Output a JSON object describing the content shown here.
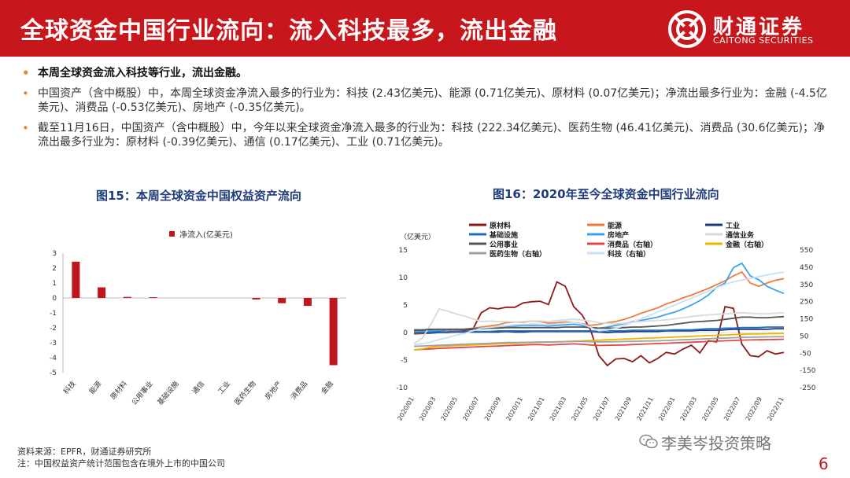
{
  "header": {
    "title": "全球资金中国行业流向：流入科技最多，流出金融",
    "brand_cn": "财通证券",
    "brand_en": "CAITONG SECURITIES",
    "color": "#c8161d"
  },
  "bullets": [
    "本周全球资金流入科技等行业，流出金融。",
    "中国资产（含中概股）中，本周全球资金净流入最多的行业为：科技 (2.43亿美元)、能源 (0.71亿美元)、原材料 (0.07亿美元)；净流出最多行业为：金融 (-4.5亿美元)、消费品 (-0.53亿美元)、房地产 (-0.35亿美元)。",
    "截至11月16日，中国资产（含中概股）中，今年以来全球资金净流入最多的行业为：科技 (222.34亿美元)、医药生物 (46.41亿美元)、消费品 (30.6亿美元)；净流出最多行业为：原材料 (-0.39亿美元)、通信 (0.17亿美元)、工业 (0.71亿美元)。"
  ],
  "figures": {
    "fig15_title": "图15：本周全球资金中国权益资产流向",
    "fig16_title": "图16：2020年至今全球资金中国行业流向"
  },
  "chart_data": [
    {
      "type": "bar",
      "legend": "净流入(亿美元)",
      "categories": [
        "科技",
        "能源",
        "原材料",
        "公用事业",
        "基础设施",
        "通信",
        "工业",
        "医药生物",
        "房地产",
        "消费品",
        "金融"
      ],
      "values": [
        2.43,
        0.71,
        0.07,
        0.05,
        0.0,
        0.0,
        0.0,
        -0.1,
        -0.35,
        -0.53,
        -4.5
      ],
      "ylim": [
        -5,
        3
      ],
      "yticks": [
        3,
        2,
        1,
        0,
        -1,
        -2,
        -3,
        -4,
        -5
      ],
      "bar_color": "#c0161d"
    },
    {
      "type": "line",
      "ylabel": "（亿美元）",
      "left_ylim": [
        -10,
        15
      ],
      "left_yticks": [
        15,
        10,
        5,
        0,
        -5,
        -10
      ],
      "right_ylim": [
        -250,
        550
      ],
      "right_yticks": [
        550,
        450,
        350,
        250,
        150,
        50,
        -50,
        -150,
        -250
      ],
      "x_ticks": [
        "2020/01",
        "2020/03",
        "2020/05",
        "2020/07",
        "2020/09",
        "2020/11",
        "2021/01",
        "2021/03",
        "2021/05",
        "2021/07",
        "2021/09",
        "2021/11",
        "2022/01",
        "2022/03",
        "2022/05",
        "2022/07",
        "2022/09",
        "2022/11"
      ],
      "series": [
        {
          "name": "原材料",
          "axis": "left",
          "color": "#8b1a1a",
          "values": [
            0.3,
            0.3,
            0.4,
            0.3,
            0.5,
            0.4,
            0.4,
            0.6,
            3.6,
            4.5,
            4.3,
            4.6,
            4.6,
            5.4,
            5.6,
            5.7,
            5.1,
            9.2,
            8.4,
            4.7,
            3.2,
            0.5,
            -4.2,
            -6.0,
            -4.8,
            -4.7,
            -5.3,
            -4.2,
            -5.5,
            -4.7,
            -3.6,
            -3.9,
            -3.0,
            -2.3,
            -3.7,
            -1.5,
            -1.7,
            4.7,
            4.4,
            -2.1,
            -4.2,
            -4.4,
            -3.3,
            -3.9,
            -3.6
          ]
        },
        {
          "name": "能源",
          "axis": "left",
          "color": "#f07b3f",
          "values": [
            -0.3,
            -0.2,
            -0.1,
            0.1,
            0.2,
            0.4,
            0.6,
            0.8,
            1.0,
            1.2,
            1.4,
            1.8,
            1.9,
            1.9,
            2.1,
            2.0,
            1.7,
            1.8,
            1.9,
            1.8,
            1.6,
            1.3,
            1.5,
            1.8,
            2.0,
            2.4,
            2.9,
            3.5,
            4.0,
            4.5,
            5.2,
            5.7,
            6.3,
            6.8,
            7.4,
            8.0,
            8.7,
            9.4,
            10.3,
            11.0,
            9.0,
            8.4,
            9.0,
            9.5,
            9.8
          ]
        },
        {
          "name": "工业",
          "axis": "left",
          "color": "#1f3b7a",
          "values": [
            -0.1,
            -0.1,
            -0.1,
            0.0,
            0.0,
            0.1,
            0.1,
            0.1,
            0.1,
            0.1,
            0.1,
            0.2,
            0.1,
            0.1,
            0.2,
            0.2,
            0.2,
            0.2,
            0.2,
            0.2,
            0.2,
            0.2,
            0.1,
            0.0,
            0.1,
            0.1,
            0.2,
            0.2,
            0.2,
            0.2,
            0.3,
            0.3,
            0.3,
            0.3,
            0.4,
            0.4,
            0.4,
            0.5,
            0.6,
            0.6,
            0.6,
            0.6,
            0.6,
            0.7,
            0.7
          ]
        },
        {
          "name": "基础设施",
          "axis": "left",
          "color": "#1f6fbf",
          "values": [
            0.0,
            0.1,
            0.1,
            0.1,
            0.1,
            0.2,
            0.2,
            0.2,
            0.2,
            0.2,
            0.3,
            0.3,
            0.3,
            0.3,
            0.3,
            0.3,
            0.3,
            0.3,
            0.3,
            0.3,
            0.3,
            0.3,
            0.2,
            0.3,
            0.3,
            0.3,
            0.4,
            0.4,
            0.4,
            0.4,
            0.4,
            0.5,
            0.5,
            0.5,
            0.6,
            0.7,
            0.7,
            0.8,
            0.8,
            0.9,
            0.9,
            0.9,
            1.0,
            1.0,
            1.0
          ]
        },
        {
          "name": "房地产",
          "axis": "left",
          "color": "#3da3e8",
          "values": [
            0.2,
            0.2,
            0.3,
            0.4,
            0.5,
            0.6,
            0.6,
            0.7,
            0.8,
            0.9,
            1.0,
            1.1,
            1.2,
            1.3,
            1.3,
            1.3,
            1.2,
            1.3,
            1.4,
            1.5,
            1.3,
            0.9,
            0.8,
            1.0,
            1.3,
            1.6,
            2.0,
            2.2,
            2.5,
            2.8,
            3.3,
            3.7,
            4.3,
            5.0,
            5.8,
            6.8,
            8.2,
            9.0,
            11.8,
            12.6,
            10.3,
            9.6,
            8.4,
            7.7,
            7.1
          ]
        },
        {
          "name": "通信业务",
          "axis": "left",
          "color": "#d9d9d9",
          "values": [
            -2.0,
            -1.0,
            1.5,
            4.3,
            3.9,
            3.4,
            3.0,
            2.5,
            2.0,
            2.1,
            2.0,
            2.0,
            1.9,
            2.0,
            2.1,
            2.1,
            2.0,
            2.2,
            2.3,
            2.4,
            2.3,
            2.1,
            1.8,
            1.7,
            1.6,
            1.7,
            1.9,
            2.0,
            2.1,
            2.2,
            2.3,
            2.5,
            2.7,
            2.9,
            3.1,
            3.2,
            3.3,
            3.4,
            3.5,
            3.6,
            3.5,
            3.4,
            3.4,
            3.5,
            3.6
          ]
        },
        {
          "name": "公用事业",
          "axis": "left",
          "color": "#555555",
          "values": [
            0.5,
            0.5,
            0.6,
            0.6,
            0.6,
            0.6,
            0.6,
            0.7,
            0.7,
            0.8,
            0.8,
            0.9,
            0.9,
            0.9,
            0.9,
            0.9,
            0.9,
            0.9,
            1.0,
            1.0,
            1.0,
            0.9,
            0.8,
            0.8,
            0.8,
            0.9,
            1.0,
            1.0,
            1.1,
            1.2,
            1.3,
            1.5,
            1.7,
            1.9,
            2.0,
            2.1,
            2.2,
            2.4,
            2.6,
            2.8,
            2.8,
            2.7,
            2.7,
            2.8,
            2.9
          ]
        },
        {
          "name": "消费品（右轴）",
          "axis": "right",
          "color": "#e04848",
          "values": [
            -30,
            -28,
            -25,
            -22,
            -20,
            -18,
            -16,
            -14,
            -12,
            -10,
            -8,
            -6,
            -4,
            -2,
            0,
            0,
            -2,
            0,
            2,
            4,
            2,
            -2,
            -5,
            -4,
            -3,
            -2,
            0,
            2,
            4,
            6,
            8,
            10,
            12,
            14,
            16,
            18,
            20,
            22,
            24,
            26,
            27,
            28,
            29,
            30,
            31
          ]
        },
        {
          "name": "金融（右轴）",
          "axis": "right",
          "color": "#f0b400",
          "values": [
            -30,
            -25,
            -15,
            -10,
            -8,
            -6,
            -4,
            -2,
            0,
            2,
            4,
            6,
            8,
            10,
            12,
            14,
            15,
            16,
            18,
            20,
            22,
            24,
            26,
            28,
            30,
            32,
            34,
            36,
            38,
            40,
            42,
            44,
            46,
            48,
            50,
            52,
            54,
            56,
            58,
            60,
            62,
            62,
            63,
            64,
            65
          ]
        },
        {
          "name": "医药生物（右轴）",
          "axis": "right",
          "color": "#a0a0a0",
          "values": [
            -10,
            -8,
            -6,
            -4,
            -2,
            0,
            2,
            4,
            6,
            8,
            10,
            12,
            12,
            13,
            14,
            15,
            15,
            16,
            17,
            18,
            18,
            17,
            16,
            16,
            17,
            18,
            19,
            20,
            21,
            22,
            24,
            26,
            28,
            30,
            32,
            34,
            36,
            38,
            40,
            42,
            43,
            44,
            45,
            46,
            46
          ]
        },
        {
          "name": "科技（右轴）",
          "axis": "right",
          "color": "#c8e0f5",
          "values": [
            0,
            5,
            15,
            30,
            40,
            55,
            65,
            80,
            95,
            100,
            105,
            110,
            115,
            118,
            120,
            118,
            115,
            120,
            125,
            128,
            120,
            100,
            80,
            85,
            95,
            110,
            130,
            150,
            170,
            190,
            210,
            230,
            250,
            270,
            290,
            310,
            330,
            350,
            365,
            375,
            385,
            395,
            405,
            415,
            420
          ]
        }
      ]
    }
  ],
  "footer": {
    "source": "资料来源：EPFR，财通证券研究所",
    "note": "注：中国权益资产统计范围包含在境外上市的中国公司"
  },
  "wechat": "李美岑投资策略",
  "page_number": "6"
}
